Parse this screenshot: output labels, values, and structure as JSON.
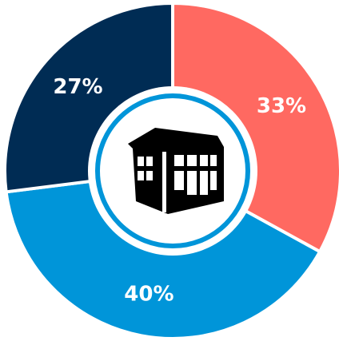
{
  "chart_data": {
    "type": "donut",
    "values": [
      33,
      40,
      27
    ],
    "value_labels": [
      "33%",
      "40%",
      "27%"
    ],
    "colors": [
      "#ff6961",
      "#0095d9",
      "#002c54"
    ]
  }
}
